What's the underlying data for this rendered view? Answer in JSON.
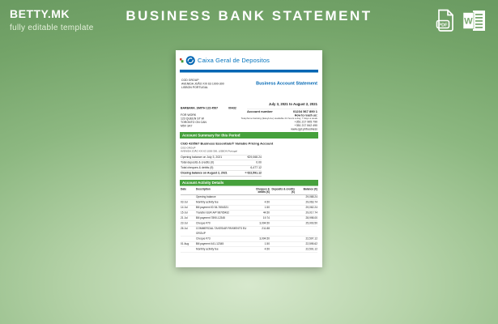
{
  "header": {
    "brand": "BETTY.MK",
    "tagline": "fully editable template",
    "title": "BUSINESS BANK STATEMENT",
    "download_icons": [
      "pdf-file",
      "word-file"
    ]
  },
  "document": {
    "bank_name": "Caixa Geral de Depositos",
    "statement_title": "Business Account Statement",
    "sender_address": [
      "CGD GROUP",
      "AVENIDA JOÃO XXI 63 1000-300",
      "LISBON PORTUGAL"
    ],
    "period": "July 3, 2021 to August 2, 2021",
    "account_number_label": "Account number",
    "account_number": "01234 567 890 1",
    "customer_ref": "BARBARA_SMITH 123 4567",
    "customer_code": "00432",
    "customer_address": [
      "FOR WORK",
      "123 QUEEN ST W",
      "TORONTO ON CAN",
      "M5V 3A7"
    ],
    "contact": {
      "heading": "How to reach us:",
      "note": "Telephone banking (EasyLine) available 24 hours a day, 7 days a week",
      "phone1": "+351 217 905 790",
      "phone2": "+351 217 842 490",
      "website": "www.cgd.pt/business"
    },
    "summary": {
      "heading": "Account Summary for this Period",
      "account_line": "CGD 420567 Business Essentials® Variable Pricing Account",
      "holder_lines": [
        "CGD GROUP",
        "AVENIDA JOÃO XXI 63 1000-300, LISBON Portugal"
      ],
      "rows": [
        {
          "label": "Opening balance on July 3, 2021",
          "value": "€29,068.24"
        },
        {
          "label": "Total deposits & credits (0)",
          "value": "0.00"
        },
        {
          "label": "Total cheques & debits (9)",
          "value": "6,477.12"
        },
        {
          "label": "Closing balance on August 2, 2021",
          "value": "= €22,591.12"
        }
      ]
    },
    "activity": {
      "heading": "Account Activity Details",
      "columns": [
        "Date",
        "Description",
        "Cheques & debits (€)",
        "Deposits & credits (€)",
        "Balance (€)"
      ],
      "rows": [
        [
          "",
          "Opening balance",
          "",
          "",
          "29,068.24"
        ],
        [
          "03 Jul",
          "Monthly activity fee",
          "4.50",
          "",
          "29,063.74"
        ],
        [
          "14 Jul",
          "Bill payment ID 54-7654321",
          "1.50",
          "",
          "29,062.24"
        ],
        [
          "15 Jul",
          "Transfer EUR A/P 98765432",
          "44.50",
          "",
          "29,017.74"
        ],
        [
          "21 Jul",
          "Bill payment 7890-12345",
          "19.74",
          "",
          "28,998.00"
        ],
        [
          "23 Jul",
          "Cheque #70",
          "3,094.50",
          "",
          "25,903.50"
        ],
        [
          "26 Jul",
          "COMMERCIAL TAXES/AR PAYMENTS EU GROUP",
          "211.88",
          "",
          ""
        ],
        [
          "",
          "Cheque #73",
          "3,094.50",
          "",
          "22,597.12"
        ],
        [
          "01 Aug",
          "Bill payment 441-12345",
          "1.50",
          "",
          "22,595.62"
        ],
        [
          "",
          "Monthly activity fee",
          "4.50",
          "",
          "22,591.12"
        ]
      ]
    }
  },
  "colors": {
    "accent_blue": "#0066b3",
    "bar_green": "#46a13c",
    "background_green": "#7fae74",
    "white": "#ffffff"
  }
}
